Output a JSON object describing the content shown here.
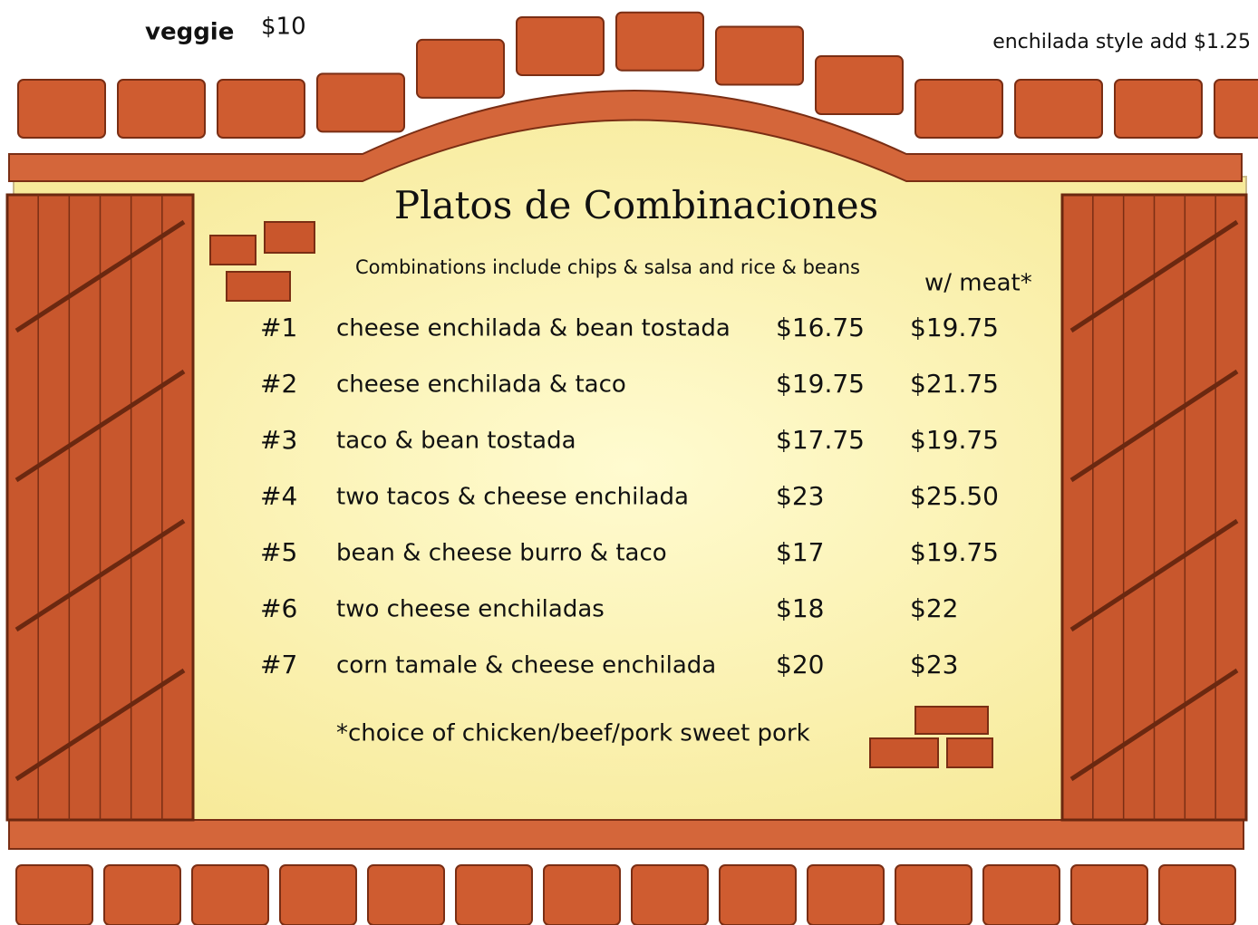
{
  "header": {
    "veggie_label": "veggie",
    "veggie_price": "$10",
    "enchilada_note": "enchilada style add $1.25"
  },
  "menu": {
    "title": "Platos de Combinaciones",
    "subtitle": "Combinations include chips & salsa and rice & beans",
    "meat_header": "w/ meat*",
    "rows": [
      {
        "number": "#1",
        "item": "cheese enchilada & bean tostada",
        "price": "$16.75",
        "meat_price": "$19.75"
      },
      {
        "number": "#2",
        "item": "cheese enchilada & taco",
        "price": "$19.75",
        "meat_price": "$21.75"
      },
      {
        "number": "#3",
        "item": "taco & bean tostada",
        "price": "$17.75",
        "meat_price": "$19.75"
      },
      {
        "number": "#4",
        "item": "two tacos & cheese enchilada",
        "price": "$23",
        "meat_price": "$25.50"
      },
      {
        "number": "#5",
        "item": "bean & cheese burro & taco",
        "price": "$17",
        "meat_price": "$19.75"
      },
      {
        "number": "#6",
        "item": "two cheese enchiladas",
        "price": "$18",
        "meat_price": "$22"
      },
      {
        "number": "#7",
        "item": "corn tamale & cheese enchilada",
        "price": "$20",
        "meat_price": "$23"
      }
    ],
    "footnote": "*choice of chicken/beef/pork sweet  pork"
  }
}
